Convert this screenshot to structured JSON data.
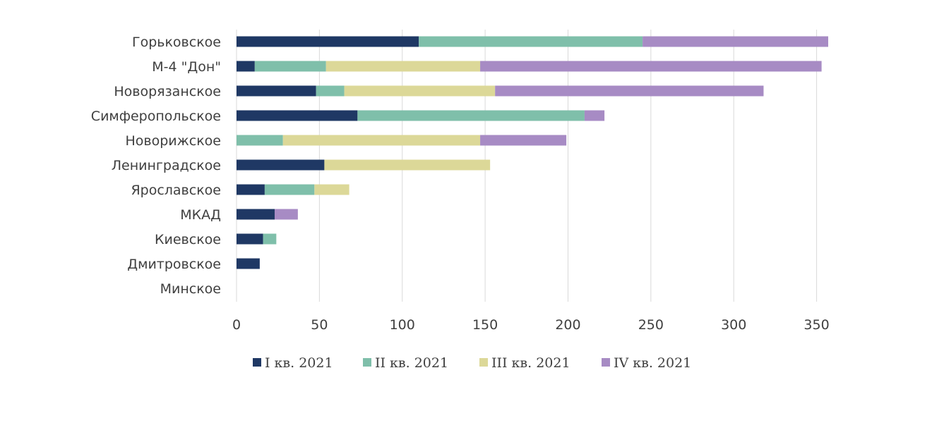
{
  "chart_data": {
    "type": "bar",
    "orientation": "horizontal",
    "stacked": true,
    "categories": [
      "Горьковское",
      "М-4 \"Дон\"",
      "Новорязанское",
      "Симферопольское",
      "Новорижское",
      "Ленинградское",
      "Ярославское",
      "МКАД",
      "Киевское",
      "Дмитровское",
      "Минское"
    ],
    "series": [
      {
        "name": "I кв. 2021",
        "color": "#1f3864",
        "values": [
          110,
          11,
          48,
          73,
          0,
          53,
          17,
          23,
          16,
          14,
          0
        ]
      },
      {
        "name": "II кв. 2021",
        "color": "#7fbfaa",
        "values": [
          135,
          43,
          17,
          137,
          28,
          0,
          30,
          0,
          8,
          0,
          0
        ]
      },
      {
        "name": "III кв. 2021",
        "color": "#dcd898",
        "values": [
          0,
          93,
          91,
          0,
          119,
          100,
          21,
          0,
          0,
          0,
          0
        ]
      },
      {
        "name": "IV кв. 2021",
        "color": "#a78bc4",
        "values": [
          112,
          206,
          162,
          12,
          52,
          0,
          0,
          14,
          0,
          0,
          0
        ]
      }
    ],
    "xlim": [
      0,
      350
    ],
    "xticks": [
      "0",
      "50",
      "100",
      "150",
      "200",
      "250",
      "300",
      "350"
    ],
    "grid": "vertical",
    "legend_position": "bottom"
  }
}
